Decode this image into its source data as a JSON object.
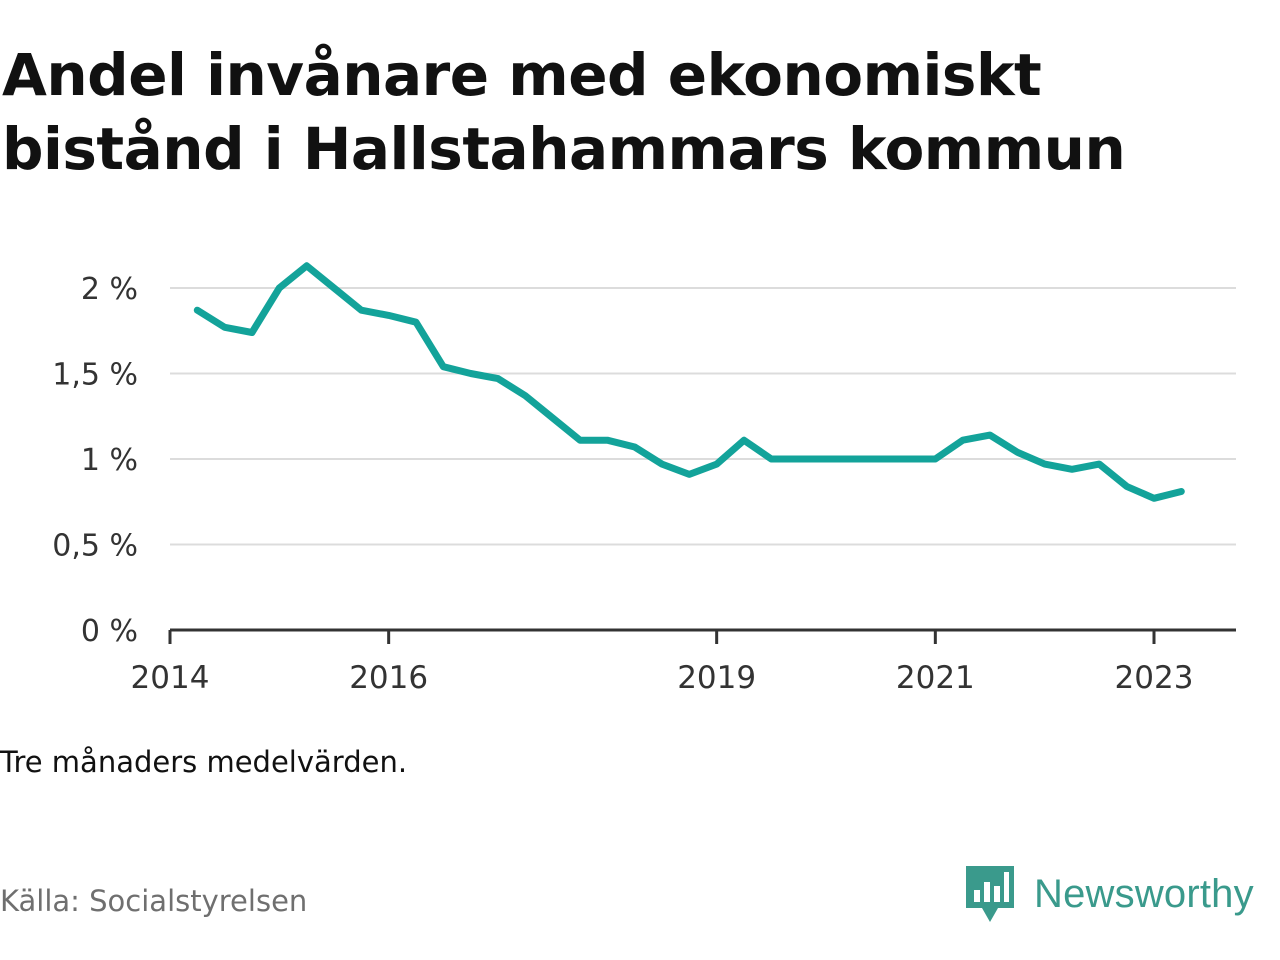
{
  "title": "Andel invånare med ekonomiskt bistånd i Hallstahammars kommun",
  "note": "Tre månaders medelvärden.",
  "source": "Källa: Socialstyrelsen",
  "brand": {
    "name": "Newsworthy",
    "icon": "bar-chart-speech-bubble-icon",
    "color": "#3a9a8c"
  },
  "chart_data": {
    "type": "line",
    "title": "Andel invånare med ekonomiskt bistånd i Hallstahammars kommun",
    "xlabel": "",
    "ylabel": "",
    "ylim": [
      0,
      2
    ],
    "grid": true,
    "legend": "none",
    "line_color": "#13a39a",
    "yticks": [
      {
        "value": 0,
        "label": "0 %"
      },
      {
        "value": 0.5,
        "label": "0,5 %"
      },
      {
        "value": 1,
        "label": "1 %"
      },
      {
        "value": 1.5,
        "label": "1,5 %"
      },
      {
        "value": 2,
        "label": "2 %"
      }
    ],
    "xticks": [
      {
        "value": "2014-01",
        "label": "2014"
      },
      {
        "value": "2016-01",
        "label": "2016"
      },
      {
        "value": "2019-01",
        "label": "2019"
      },
      {
        "value": "2021-01",
        "label": "2021"
      },
      {
        "value": "2023-01",
        "label": "2023"
      }
    ],
    "series": [
      {
        "x": [
          "2014-04",
          "2014-07",
          "2014-10",
          "2015-01",
          "2015-04",
          "2015-07",
          "2015-10",
          "2016-01",
          "2016-04",
          "2016-07",
          "2016-10",
          "2017-01",
          "2017-04",
          "2017-07",
          "2017-10",
          "2018-01",
          "2018-04",
          "2018-07",
          "2018-10",
          "2019-01",
          "2019-04",
          "2019-07",
          "2019-10",
          "2020-01",
          "2020-04",
          "2020-07",
          "2020-10",
          "2021-01",
          "2021-04",
          "2021-07",
          "2021-10",
          "2022-01",
          "2022-04",
          "2022-07",
          "2022-10",
          "2023-01",
          "2023-04"
        ],
        "values": [
          1.87,
          1.77,
          1.74,
          2.0,
          2.13,
          2.0,
          1.87,
          1.84,
          1.8,
          1.54,
          1.5,
          1.47,
          1.37,
          1.24,
          1.11,
          1.11,
          1.07,
          0.97,
          0.91,
          0.97,
          1.11,
          1.0,
          1.0,
          1.0,
          1.0,
          1.0,
          1.0,
          1.0,
          1.11,
          1.14,
          1.04,
          0.97,
          0.94,
          0.97,
          0.84,
          0.77,
          0.81
        ]
      }
    ]
  }
}
